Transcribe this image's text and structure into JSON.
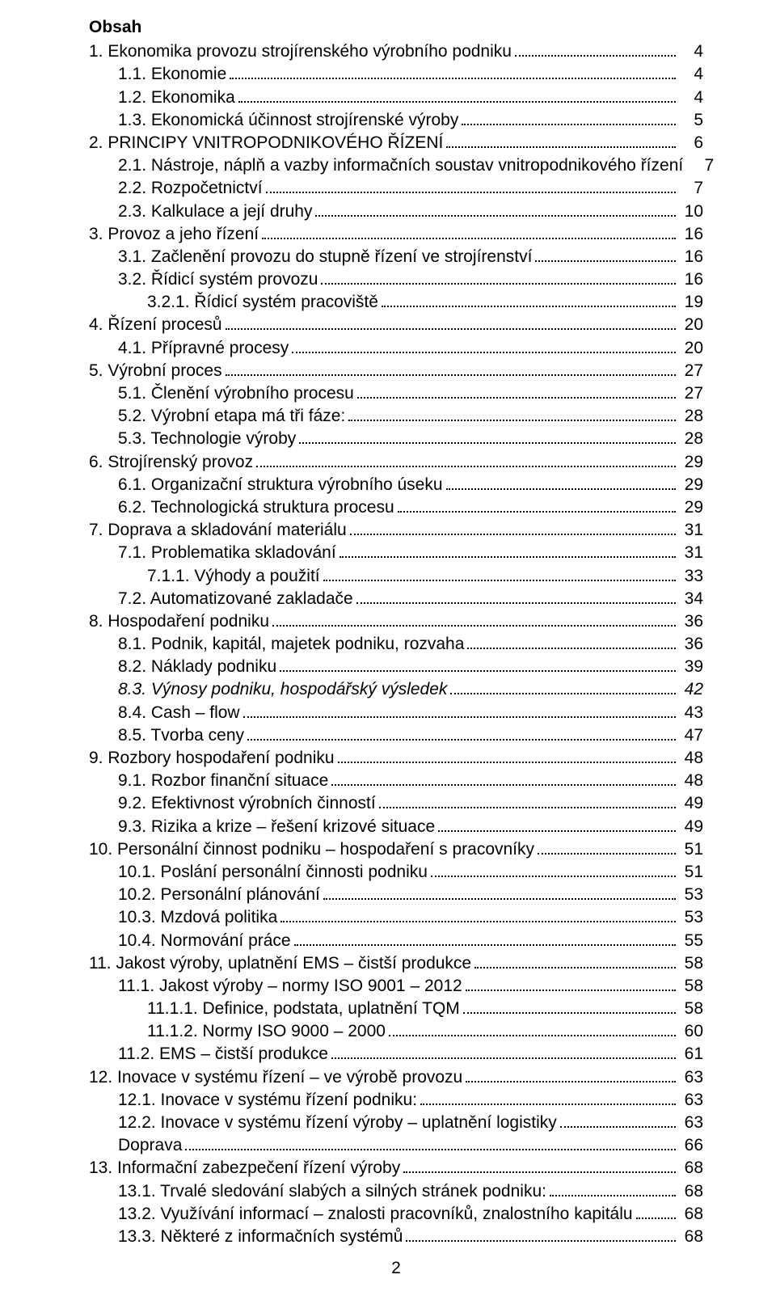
{
  "title": "Obsah",
  "footer_page": "2",
  "toc": [
    {
      "indent": 0,
      "label": "1.  Ekonomika provozu strojírenského výrobního podniku",
      "page": "4",
      "italic": false
    },
    {
      "indent": 1,
      "label": "1.1.  Ekonomie",
      "page": "4",
      "italic": false
    },
    {
      "indent": 1,
      "label": "1.2.  Ekonomika",
      "page": "4",
      "italic": false
    },
    {
      "indent": 1,
      "label": "1.3.  Ekonomická účinnost strojírenské výroby",
      "page": "5",
      "italic": false
    },
    {
      "indent": 0,
      "label": "2.  PRINCIPY VNITROPODNIKOVÉHO ŘÍZENÍ",
      "page": "6",
      "italic": false
    },
    {
      "indent": 1,
      "label": "2.1.  Nástroje, náplň a vazby informačních soustav vnitropodnikového řízení",
      "page": "7",
      "italic": false
    },
    {
      "indent": 1,
      "label": "2.2.  Rozpočetnictví",
      "page": "7",
      "italic": false
    },
    {
      "indent": 1,
      "label": "2.3.  Kalkulace a její druhy",
      "page": "10",
      "italic": false
    },
    {
      "indent": 0,
      "label": "3.  Provoz a jeho řízení",
      "page": "16",
      "italic": false
    },
    {
      "indent": 1,
      "label": "3.1.  Začlenění provozu do stupně řízení ve strojírenství",
      "page": "16",
      "italic": false
    },
    {
      "indent": 1,
      "label": "3.2.  Řídicí systém provozu",
      "page": "16",
      "italic": false
    },
    {
      "indent": 2,
      "label": "3.2.1.    Řídicí systém pracoviště",
      "page": "19",
      "italic": false
    },
    {
      "indent": 0,
      "label": "4.  Řízení procesů",
      "page": "20",
      "italic": false
    },
    {
      "indent": 1,
      "label": "4.1.    Přípravné procesy",
      "page": "20",
      "italic": false
    },
    {
      "indent": 0,
      "label": "5.  Výrobní proces",
      "page": "27",
      "italic": false
    },
    {
      "indent": 1,
      "label": "5.1.  Členění výrobního procesu",
      "page": "27",
      "italic": false
    },
    {
      "indent": 1,
      "label": "5.2.  Výrobní etapa má tři fáze:",
      "page": "28",
      "italic": false
    },
    {
      "indent": 1,
      "label": "5.3.  Technologie výroby",
      "page": "28",
      "italic": false
    },
    {
      "indent": 0,
      "label": "6.  Strojírenský provoz",
      "page": "29",
      "italic": false
    },
    {
      "indent": 1,
      "label": "6.1.  Organizační struktura výrobního úseku",
      "page": "29",
      "italic": false
    },
    {
      "indent": 1,
      "label": "6.2.  Technologická struktura procesu",
      "page": "29",
      "italic": false
    },
    {
      "indent": 0,
      "label": "7.  Doprava a skladování materiálu",
      "page": "31",
      "italic": false
    },
    {
      "indent": 1,
      "label": "7.1.    Problematika skladování",
      "page": "31",
      "italic": false
    },
    {
      "indent": 2,
      "label": "7.1.1.    Výhody a použití",
      "page": "33",
      "italic": false
    },
    {
      "indent": 1,
      "label": "7.2.  Automatizované zakladače",
      "page": "34",
      "italic": false
    },
    {
      "indent": 0,
      "label": "8.  Hospodaření podniku",
      "page": "36",
      "italic": false
    },
    {
      "indent": 1,
      "label": "8.1.  Podnik, kapitál, majetek podniku, rozvaha",
      "page": "36",
      "italic": false
    },
    {
      "indent": 1,
      "label": "8.2.  Náklady  podniku",
      "page": "39",
      "italic": false
    },
    {
      "indent": 1,
      "label": "8.3.  Výnosy podniku, hospodářský výsledek",
      "page": "42",
      "italic": true
    },
    {
      "indent": 1,
      "label": "8.4.  Cash – flow",
      "page": "43",
      "italic": false
    },
    {
      "indent": 1,
      "label": "8.5.  Tvorba ceny",
      "page": "47",
      "italic": false
    },
    {
      "indent": 0,
      "label": "9.  Rozbory hospodaření podniku",
      "page": "48",
      "italic": false
    },
    {
      "indent": 1,
      "label": "9.1.  Rozbor finanční situace",
      "page": "48",
      "italic": false
    },
    {
      "indent": 1,
      "label": "9.2.  Efektivnost výrobních činností",
      "page": "49",
      "italic": false
    },
    {
      "indent": 1,
      "label": "9.3.  Rizika a krize – řešení krizové situace",
      "page": "49",
      "italic": false
    },
    {
      "indent": 0,
      "label": "10.    Personální činnost podniku – hospodaření s pracovníky",
      "page": "51",
      "italic": false
    },
    {
      "indent": 1,
      "label": "10.1.  Poslání personální činnosti podniku",
      "page": "51",
      "italic": false
    },
    {
      "indent": 1,
      "label": "10.2.  Personální plánování",
      "page": "53",
      "italic": false
    },
    {
      "indent": 1,
      "label": "10.3.  Mzdová politika",
      "page": "53",
      "italic": false
    },
    {
      "indent": 1,
      "label": "10.4.  Normování práce",
      "page": "55",
      "italic": false
    },
    {
      "indent": 0,
      "label": "11.    Jakost výroby, uplatnění EMS – čistší produkce",
      "page": "58",
      "italic": false
    },
    {
      "indent": 1,
      "label": "11.1.  Jakost výroby – normy ISO 9001 – 2012",
      "page": "58",
      "italic": false
    },
    {
      "indent": 2,
      "label": "11.1.1.   Definice, podstata, uplatnění TQM",
      "page": "58",
      "italic": false
    },
    {
      "indent": 2,
      "label": "11.1.2.   Normy ISO 9000 – 2000",
      "page": "60",
      "italic": false
    },
    {
      "indent": 1,
      "label": "11.2.  EMS – čistší produkce",
      "page": "61",
      "italic": false
    },
    {
      "indent": 0,
      "label": "12.    Inovace v systému řízení – ve výrobě provozu",
      "page": "63",
      "italic": false
    },
    {
      "indent": 1,
      "label": "12.1.  Inovace v systému řízení podniku:",
      "page": "63",
      "italic": false
    },
    {
      "indent": 1,
      "label": "12.2.  Inovace v systému řízení výroby – uplatnění logistiky",
      "page": "63",
      "italic": false
    },
    {
      "indent": 1,
      "label": "Doprava",
      "page": "66",
      "italic": false
    },
    {
      "indent": 0,
      "label": "13.    Informační zabezpečení řízení výroby",
      "page": "68",
      "italic": false
    },
    {
      "indent": 1,
      "label": "13.1.  Trvalé sledování slabých a silných stránek podniku:",
      "page": "68",
      "italic": false
    },
    {
      "indent": 1,
      "label": "13.2.  Využívání informací – znalosti pracovníků, znalostního kapitálu",
      "page": "68",
      "italic": false
    },
    {
      "indent": 1,
      "label": "13.3.  Některé z informačních systémů",
      "page": "68",
      "italic": false
    }
  ]
}
